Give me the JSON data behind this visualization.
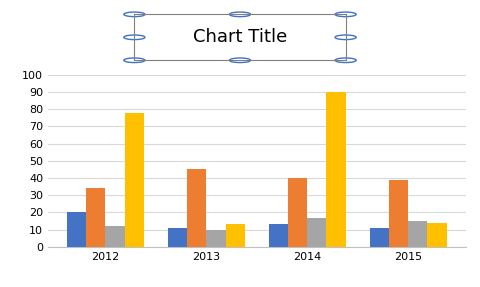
{
  "title": "Chart Title",
  "categories": [
    "2012",
    "2013",
    "2014",
    "2015"
  ],
  "series": {
    "Desktop Computers": [
      20,
      11,
      13,
      11
    ],
    "Laptops": [
      34,
      45,
      40,
      39
    ],
    "Monitors": [
      12,
      10,
      17,
      15
    ],
    "Printers": [
      78,
      13,
      90,
      14
    ]
  },
  "colors": {
    "Desktop Computers": "#4472C4",
    "Laptops": "#ED7D31",
    "Monitors": "#A5A5A5",
    "Printers": "#FFC000"
  },
  "ylim": [
    0,
    100
  ],
  "yticks": [
    0,
    10,
    20,
    30,
    40,
    50,
    60,
    70,
    80,
    90,
    100
  ],
  "bar_width": 0.19,
  "figsize": [
    4.8,
    2.87
  ],
  "dpi": 100,
  "title_fontsize": 13,
  "tick_fontsize": 8,
  "legend_fontsize": 7.5,
  "background_color": "#FFFFFF",
  "grid_color": "#D9D9D9",
  "title_box_color": "#FFFFFF",
  "title_box_edge": "#808080"
}
